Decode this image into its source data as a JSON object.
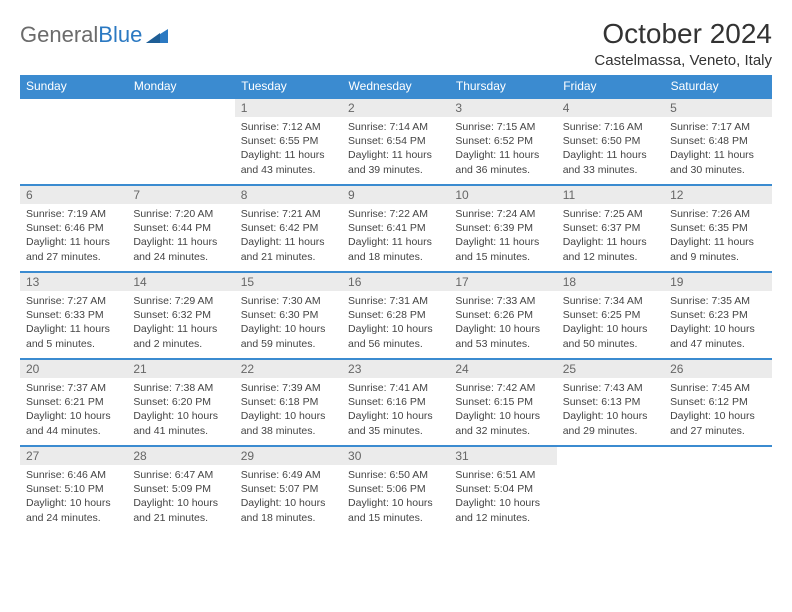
{
  "logo": {
    "text1": "General",
    "text2": "Blue"
  },
  "title": "October 2024",
  "subtitle": "Castelmassa, Veneto, Italy",
  "colors": {
    "header_bg": "#3b8bd0",
    "daynum_bg": "#ebebeb",
    "rule": "#3b8bd0",
    "logo_gray": "#6b6b6b",
    "logo_blue": "#2b79c2"
  },
  "daysOfWeek": [
    "Sunday",
    "Monday",
    "Tuesday",
    "Wednesday",
    "Thursday",
    "Friday",
    "Saturday"
  ],
  "weeks": [
    [
      null,
      null,
      {
        "n": "1",
        "sr": "7:12 AM",
        "ss": "6:55 PM",
        "dl": "11 hours and 43 minutes."
      },
      {
        "n": "2",
        "sr": "7:14 AM",
        "ss": "6:54 PM",
        "dl": "11 hours and 39 minutes."
      },
      {
        "n": "3",
        "sr": "7:15 AM",
        "ss": "6:52 PM",
        "dl": "11 hours and 36 minutes."
      },
      {
        "n": "4",
        "sr": "7:16 AM",
        "ss": "6:50 PM",
        "dl": "11 hours and 33 minutes."
      },
      {
        "n": "5",
        "sr": "7:17 AM",
        "ss": "6:48 PM",
        "dl": "11 hours and 30 minutes."
      }
    ],
    [
      {
        "n": "6",
        "sr": "7:19 AM",
        "ss": "6:46 PM",
        "dl": "11 hours and 27 minutes."
      },
      {
        "n": "7",
        "sr": "7:20 AM",
        "ss": "6:44 PM",
        "dl": "11 hours and 24 minutes."
      },
      {
        "n": "8",
        "sr": "7:21 AM",
        "ss": "6:42 PM",
        "dl": "11 hours and 21 minutes."
      },
      {
        "n": "9",
        "sr": "7:22 AM",
        "ss": "6:41 PM",
        "dl": "11 hours and 18 minutes."
      },
      {
        "n": "10",
        "sr": "7:24 AM",
        "ss": "6:39 PM",
        "dl": "11 hours and 15 minutes."
      },
      {
        "n": "11",
        "sr": "7:25 AM",
        "ss": "6:37 PM",
        "dl": "11 hours and 12 minutes."
      },
      {
        "n": "12",
        "sr": "7:26 AM",
        "ss": "6:35 PM",
        "dl": "11 hours and 9 minutes."
      }
    ],
    [
      {
        "n": "13",
        "sr": "7:27 AM",
        "ss": "6:33 PM",
        "dl": "11 hours and 5 minutes."
      },
      {
        "n": "14",
        "sr": "7:29 AM",
        "ss": "6:32 PM",
        "dl": "11 hours and 2 minutes."
      },
      {
        "n": "15",
        "sr": "7:30 AM",
        "ss": "6:30 PM",
        "dl": "10 hours and 59 minutes."
      },
      {
        "n": "16",
        "sr": "7:31 AM",
        "ss": "6:28 PM",
        "dl": "10 hours and 56 minutes."
      },
      {
        "n": "17",
        "sr": "7:33 AM",
        "ss": "6:26 PM",
        "dl": "10 hours and 53 minutes."
      },
      {
        "n": "18",
        "sr": "7:34 AM",
        "ss": "6:25 PM",
        "dl": "10 hours and 50 minutes."
      },
      {
        "n": "19",
        "sr": "7:35 AM",
        "ss": "6:23 PM",
        "dl": "10 hours and 47 minutes."
      }
    ],
    [
      {
        "n": "20",
        "sr": "7:37 AM",
        "ss": "6:21 PM",
        "dl": "10 hours and 44 minutes."
      },
      {
        "n": "21",
        "sr": "7:38 AM",
        "ss": "6:20 PM",
        "dl": "10 hours and 41 minutes."
      },
      {
        "n": "22",
        "sr": "7:39 AM",
        "ss": "6:18 PM",
        "dl": "10 hours and 38 minutes."
      },
      {
        "n": "23",
        "sr": "7:41 AM",
        "ss": "6:16 PM",
        "dl": "10 hours and 35 minutes."
      },
      {
        "n": "24",
        "sr": "7:42 AM",
        "ss": "6:15 PM",
        "dl": "10 hours and 32 minutes."
      },
      {
        "n": "25",
        "sr": "7:43 AM",
        "ss": "6:13 PM",
        "dl": "10 hours and 29 minutes."
      },
      {
        "n": "26",
        "sr": "7:45 AM",
        "ss": "6:12 PM",
        "dl": "10 hours and 27 minutes."
      }
    ],
    [
      {
        "n": "27",
        "sr": "6:46 AM",
        "ss": "5:10 PM",
        "dl": "10 hours and 24 minutes."
      },
      {
        "n": "28",
        "sr": "6:47 AM",
        "ss": "5:09 PM",
        "dl": "10 hours and 21 minutes."
      },
      {
        "n": "29",
        "sr": "6:49 AM",
        "ss": "5:07 PM",
        "dl": "10 hours and 18 minutes."
      },
      {
        "n": "30",
        "sr": "6:50 AM",
        "ss": "5:06 PM",
        "dl": "10 hours and 15 minutes."
      },
      {
        "n": "31",
        "sr": "6:51 AM",
        "ss": "5:04 PM",
        "dl": "10 hours and 12 minutes."
      },
      null,
      null
    ]
  ],
  "labels": {
    "sunrise": "Sunrise:",
    "sunset": "Sunset:",
    "daylight": "Daylight:"
  }
}
